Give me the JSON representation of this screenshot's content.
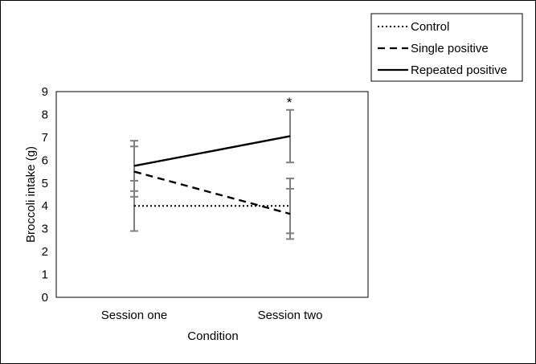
{
  "chart_data": {
    "type": "line",
    "categories": [
      "Session one",
      "Session two"
    ],
    "series": [
      {
        "name": "Control",
        "style": "dotted",
        "values": [
          4.0,
          4.0
        ],
        "error": [
          1.1,
          1.2
        ]
      },
      {
        "name": "Single positive",
        "style": "dashed",
        "values": [
          5.5,
          3.65
        ],
        "error": [
          1.1,
          1.1
        ]
      },
      {
        "name": "Repeated positive",
        "style": "solid",
        "values": [
          5.75,
          7.05
        ],
        "error": [
          1.1,
          1.15
        ]
      }
    ],
    "xlabel": "Condition",
    "ylabel": "Broccoli intake (g)",
    "ylim": [
      0,
      9
    ],
    "yticks": [
      "0",
      "1",
      "2",
      "3",
      "4",
      "5",
      "6",
      "7",
      "8",
      "9"
    ],
    "annotation": "*",
    "legend_position": "top-right",
    "grid": false,
    "colors": {
      "line": "#000000",
      "error_bar": "#7f7f7f"
    }
  }
}
